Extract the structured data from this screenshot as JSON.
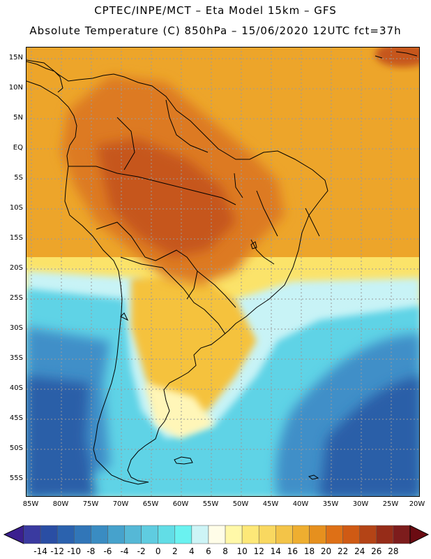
{
  "header": {
    "title_line1": "CPTEC/INPE/MCT –  Eta Model 15km – GFS",
    "title_line2": "Absolute Temperature (C) 850hPa – 15/06/2020 12UTC fct=37h"
  },
  "map": {
    "lat_labels": [
      "15N",
      "10N",
      "5N",
      "EQ",
      "5S",
      "10S",
      "15S",
      "20S",
      "25S",
      "30S",
      "35S",
      "40S",
      "45S",
      "50S",
      "55S"
    ],
    "lon_labels": [
      "85W",
      "80W",
      "75W",
      "70W",
      "65W",
      "60W",
      "55W",
      "50W",
      "45W",
      "40W",
      "35W",
      "30W",
      "25W",
      "20W"
    ],
    "colors": {
      "ocean_deep": "#2b5ea8",
      "ocean_mid": "#3f8fc8",
      "cold_cyan": "#5fd3e6",
      "light_cyan": "#c8f3f6",
      "pale_yellow": "#fff6b8",
      "yellow": "#fbe36a",
      "gold": "#f5c23c",
      "orange": "#eda52a",
      "dark_orange": "#dd7a20",
      "rust": "#c6561a",
      "gridline": "#9a9a9a",
      "coastline": "#000000"
    }
  },
  "colorbar": {
    "labels": [
      "-14",
      "-12",
      "-10",
      "-8",
      "-6",
      "-4",
      "-2",
      "0",
      "2",
      "4",
      "6",
      "8",
      "10",
      "12",
      "14",
      "16",
      "18",
      "20",
      "22",
      "24",
      "26",
      "28"
    ],
    "colors": [
      "#3a3aa0",
      "#2a4ea4",
      "#2b62ae",
      "#3176b8",
      "#3a8cc2",
      "#46a2cc",
      "#55b8d6",
      "#5fcce0",
      "#62dde6",
      "#6af2f0",
      "#cdf4f6",
      "#fffde8",
      "#fff8a8",
      "#fde878",
      "#f9d860",
      "#f3c448",
      "#eeae30",
      "#e6901e",
      "#de7016",
      "#cf5a14",
      "#b44416",
      "#962c18",
      "#7d1c1c"
    ],
    "low_arrow": "#3b1f8f",
    "high_arrow": "#6b0b12"
  }
}
